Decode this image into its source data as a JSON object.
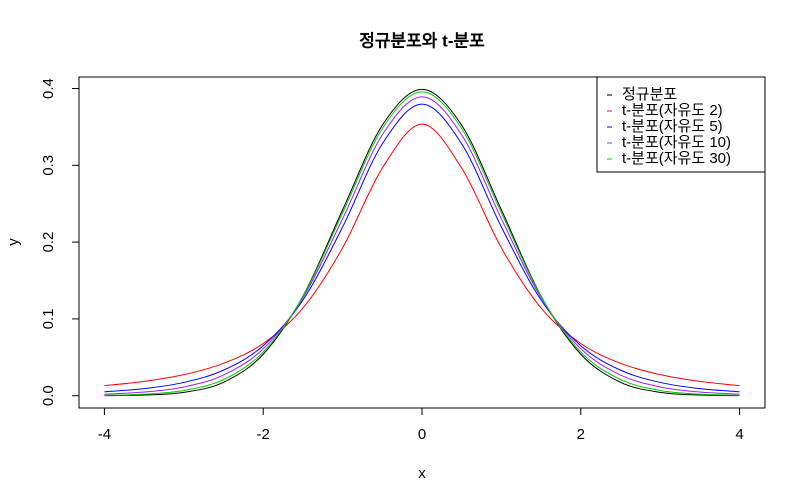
{
  "chart_data": {
    "type": "line",
    "title": "정규분포와 t-분포",
    "x_label": "x",
    "y_label": "y",
    "x": [
      -4,
      -3.5,
      -3,
      -2.5,
      -2,
      -1.5,
      -1,
      -0.5,
      0,
      0.5,
      1,
      1.5,
      2,
      2.5,
      3,
      3.5,
      4
    ],
    "series": [
      {
        "name": "정규분포",
        "color": "#000000",
        "values": [
          0.0001,
          0.0009,
          0.0044,
          0.0175,
          0.054,
          0.1295,
          0.242,
          0.3521,
          0.3989,
          0.3521,
          0.242,
          0.1295,
          0.054,
          0.0175,
          0.0044,
          0.0009,
          0.0001
        ]
      },
      {
        "name": "t-분포(자유도 2)",
        "color": "#ff0000",
        "values": [
          0.0131,
          0.0186,
          0.0274,
          0.0422,
          0.068,
          0.1141,
          0.1925,
          0.2963,
          0.3536,
          0.2963,
          0.1925,
          0.1141,
          0.068,
          0.0422,
          0.0274,
          0.0186,
          0.0131
        ]
      },
      {
        "name": "t-분포(자유도 5)",
        "color": "#0000ff",
        "values": [
          0.0051,
          0.0092,
          0.0173,
          0.0333,
          0.0651,
          0.1245,
          0.2197,
          0.3279,
          0.3796,
          0.3279,
          0.2197,
          0.1245,
          0.0651,
          0.0333,
          0.0173,
          0.0092,
          0.0051
        ]
      },
      {
        "name": "t-분포(자유도 10)",
        "color": "#a020f0",
        "values": [
          0.002,
          0.0048,
          0.0114,
          0.0269,
          0.0611,
          0.1274,
          0.2304,
          0.3397,
          0.3891,
          0.3397,
          0.2304,
          0.1274,
          0.0611,
          0.0269,
          0.0114,
          0.0048,
          0.002
        ]
      },
      {
        "name": "t-분포(자유도 30)",
        "color": "#00cd00",
        "values": [
          0.0005,
          0.002,
          0.0068,
          0.0211,
          0.0569,
          0.129,
          0.238,
          0.3478,
          0.3956,
          0.3478,
          0.238,
          0.129,
          0.0569,
          0.0211,
          0.0068,
          0.002,
          0.0005
        ]
      }
    ],
    "xlim": [
      -4.32,
      4.32
    ],
    "ylim": [
      -0.016,
      0.415
    ],
    "xticks": [
      -4,
      -2,
      0,
      2,
      4
    ],
    "yticks": [
      {
        "value": 0,
        "label": "0.0"
      },
      0.1,
      0.2,
      0.3,
      0.4
    ],
    "legend": "top-right"
  }
}
